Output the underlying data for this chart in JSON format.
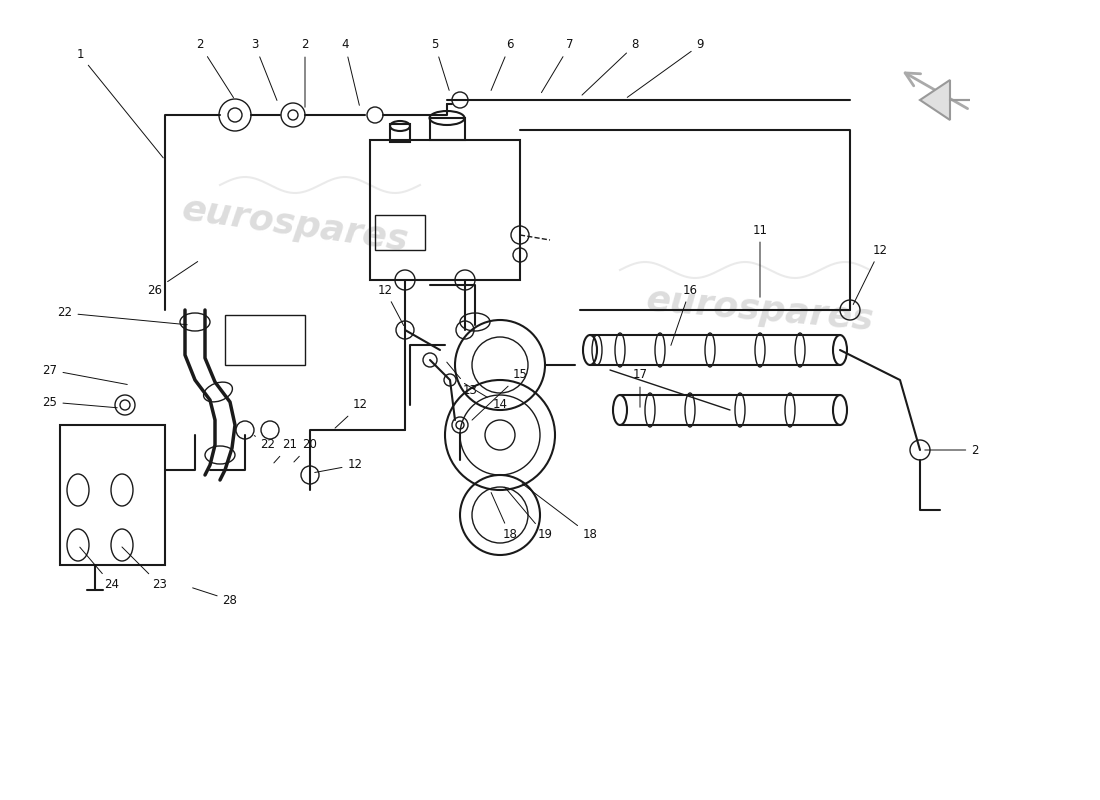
{
  "bg_color": "#ffffff",
  "line_color": "#1a1a1a",
  "label_fontsize": 8.5,
  "label_color": "#111111",
  "watermark_alpha": 0.18,
  "lw_thin": 1.0,
  "lw_med": 1.5,
  "lw_thick": 2.5,
  "lw_pipe": 5.0
}
